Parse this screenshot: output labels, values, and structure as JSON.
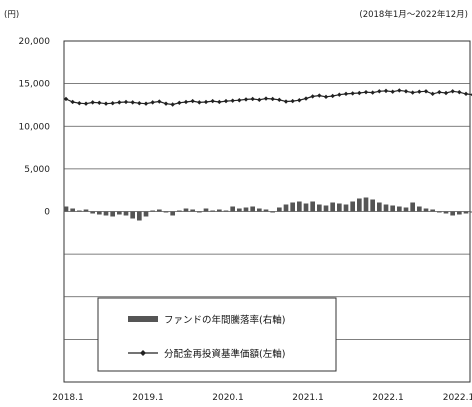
{
  "chart_data": {
    "type": "bar+line",
    "unit_label": "(円)",
    "period_note": "(2018年1月～2022年12月)",
    "y_left_ticks": [
      "20,000",
      "15,000",
      "10,000",
      "5,000",
      "0"
    ],
    "y_left_range": [
      -20000,
      20000
    ],
    "x_tick_labels": [
      "2018.1",
      "2019.1",
      "2020.1",
      "2021.1",
      "2022.1",
      "2022.12"
    ],
    "grid": true,
    "legend": {
      "placement": "bottom-center",
      "bar_label": "ファンドの年間騰落率(右軸)",
      "line_label": "分配金再投資基準価額(左軸)"
    },
    "series": [
      {
        "kind": "line",
        "axis": "left",
        "values": [
          13200,
          12850,
          12700,
          12650,
          12800,
          12750,
          12650,
          12700,
          12800,
          12850,
          12800,
          12700,
          12650,
          12800,
          12900,
          12650,
          12550,
          12750,
          12850,
          12950,
          12800,
          12850,
          12950,
          12850,
          12950,
          13000,
          13050,
          13150,
          13200,
          13100,
          13250,
          13200,
          13100,
          12900,
          12950,
          13050,
          13250,
          13500,
          13600,
          13450,
          13550,
          13700,
          13800,
          13850,
          13900,
          14000,
          13950,
          14100,
          14150,
          14050,
          14200,
          14100,
          13950,
          14050,
          14100,
          13800,
          14000,
          13900,
          14100,
          14000,
          13800,
          13700,
          13750,
          13600,
          13700,
          13800,
          13700,
          13900,
          14100,
          13850,
          13700,
          13400,
          12700
        ]
      },
      {
        "kind": "bar",
        "axis": "right",
        "values": [
          0.5,
          0.3,
          0.1,
          0.2,
          -0.2,
          -0.3,
          -0.4,
          -0.5,
          -0.3,
          -0.4,
          -0.7,
          -0.9,
          -0.5,
          0.1,
          0.2,
          -0.1,
          -0.4,
          0.1,
          0.3,
          0.2,
          -0.1,
          0.3,
          0.1,
          0.2,
          0.1,
          0.5,
          0.3,
          0.4,
          0.5,
          0.3,
          0.2,
          -0.1,
          0.4,
          0.7,
          0.9,
          1.0,
          0.8,
          1.0,
          0.7,
          0.6,
          0.9,
          0.8,
          0.7,
          1.0,
          1.3,
          1.4,
          1.2,
          0.9,
          0.7,
          0.6,
          0.5,
          0.4,
          0.9,
          0.5,
          0.3,
          0.2,
          -0.1,
          -0.2,
          -0.4,
          -0.3,
          -0.2,
          -0.1,
          0.2,
          -0.3,
          -0.5,
          -0.2,
          0.1,
          -0.3,
          -0.5,
          -0.2,
          -0.4,
          -0.3,
          -1.6
        ]
      }
    ]
  }
}
